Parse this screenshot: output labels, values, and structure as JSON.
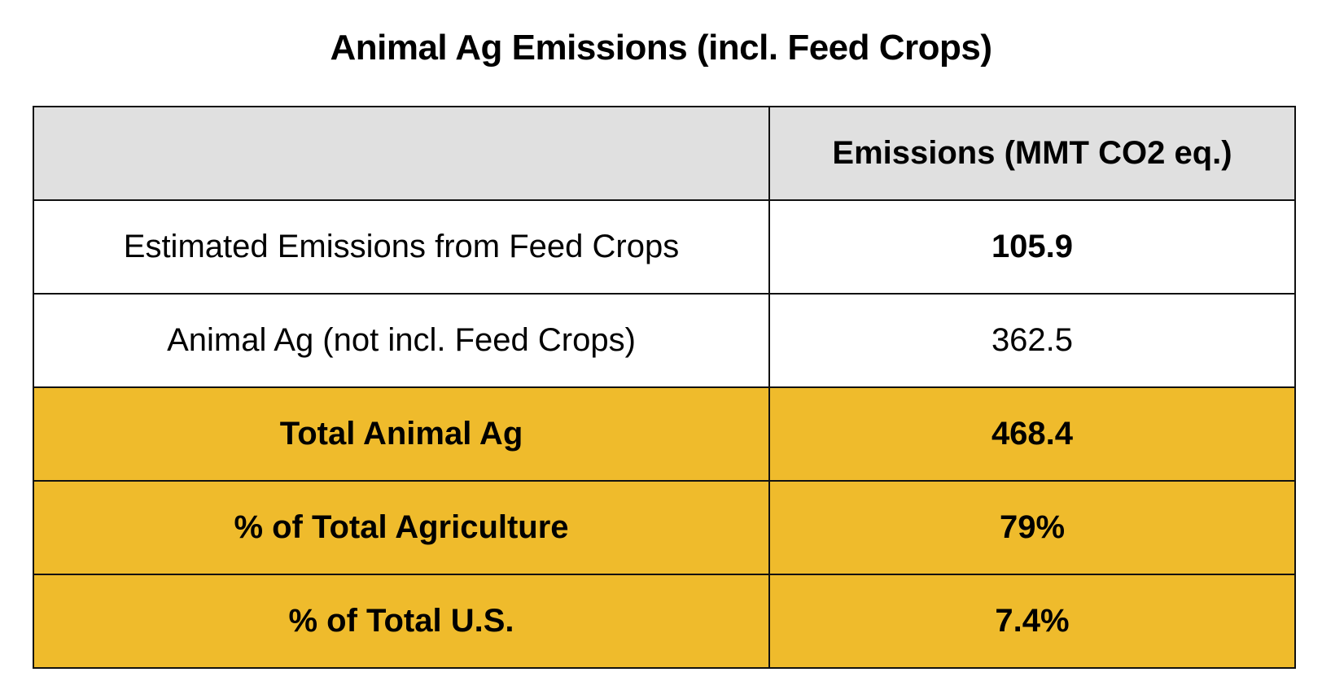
{
  "chart_data": {
    "type": "table",
    "title": "Animal Ag Emissions (incl. Feed Crops)",
    "columns": [
      "",
      "Emissions (MMT CO2 eq.)"
    ],
    "rows": [
      {
        "label": "Estimated Emissions from Feed Crops",
        "value": "105.9",
        "bold_value": true,
        "highlight": false
      },
      {
        "label": "Animal Ag (not incl. Feed Crops)",
        "value": "362.5",
        "bold_value": false,
        "highlight": false
      },
      {
        "label": "Total Animal Ag",
        "value": "468.4",
        "bold_value": true,
        "highlight": true
      },
      {
        "label": "% of Total Agriculture",
        "value": "79%",
        "bold_value": true,
        "highlight": true
      },
      {
        "label": "% of Total U.S.",
        "value": "7.4%",
        "bold_value": true,
        "highlight": true
      }
    ],
    "colors": {
      "header_bg": "#e0e0e0",
      "highlight_bg": "#efbb2c",
      "border": "#111111"
    }
  }
}
